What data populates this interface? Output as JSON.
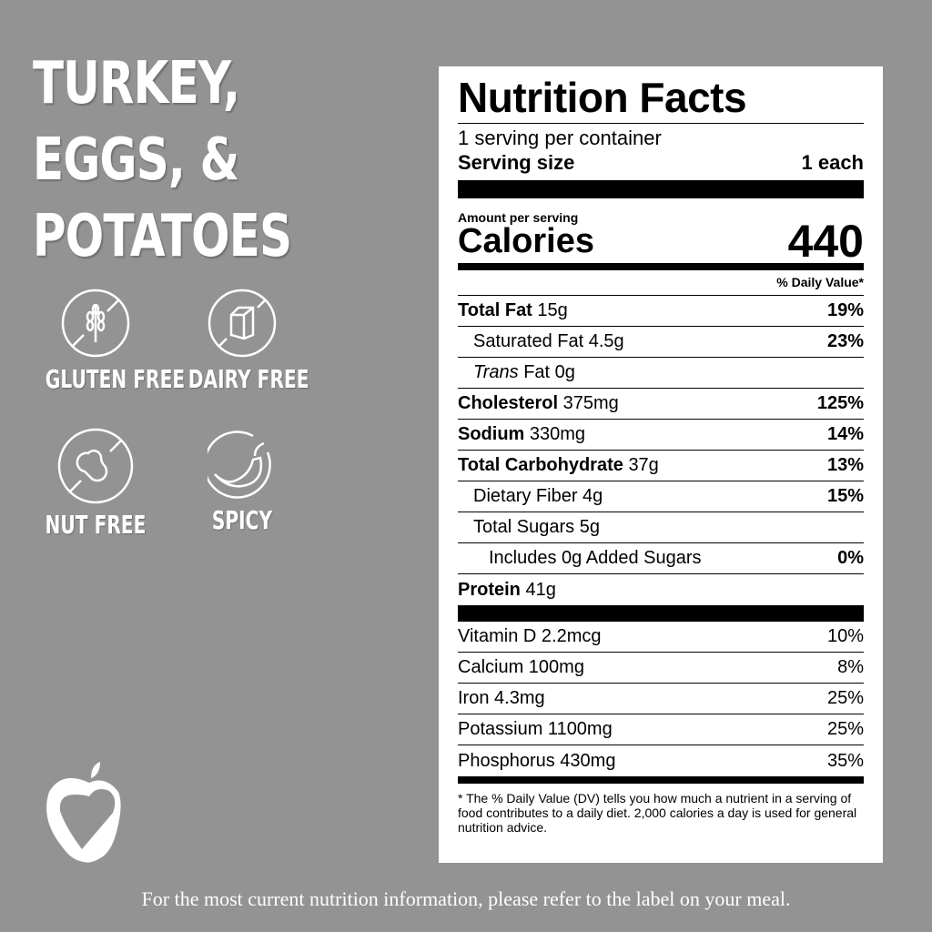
{
  "product": {
    "title_lines": [
      "TURKEY,",
      "EGGS, &",
      "POTATOES"
    ]
  },
  "badges": [
    {
      "icon": "gluten-free-icon",
      "label": "GLUTEN FREE"
    },
    {
      "icon": "dairy-free-icon",
      "label": "DAIRY FREE"
    },
    {
      "icon": "nut-free-icon",
      "label": "NUT FREE"
    },
    {
      "icon": "spicy-icon",
      "label": "SPICY"
    }
  ],
  "label": {
    "title": "Nutrition Facts",
    "servings": "1 serving per container",
    "serving_size_label": "Serving size",
    "serving_size_value": "1 each",
    "amount_per_serving": "Amount per serving",
    "calories_label": "Calories",
    "calories_value": "440",
    "dv_header": "% Daily Value*",
    "nutrients": [
      {
        "name": "Total Fat",
        "amount": "15g",
        "dv": "19%"
      },
      {
        "name": "Saturated Fat",
        "amount": "4.5g",
        "dv": "23%"
      },
      {
        "name": "Trans",
        "name2": "Fat",
        "amount": "0g",
        "dv": ""
      },
      {
        "name": "Cholesterol",
        "amount": "375mg",
        "dv": "125%"
      },
      {
        "name": "Sodium",
        "amount": "330mg",
        "dv": "14%"
      },
      {
        "name": "Total Carbohydrate",
        "amount": "37g",
        "dv": "13%"
      },
      {
        "name": "Dietary Fiber",
        "amount": "4g",
        "dv": "15%"
      },
      {
        "name": "Total Sugars",
        "amount": "5g",
        "dv": ""
      },
      {
        "name": "Includes 0g Added Sugars",
        "amount": "",
        "dv": "0%"
      },
      {
        "name": "Protein",
        "amount": "41g",
        "dv": ""
      }
    ],
    "vitamins": [
      {
        "name": "Vitamin D 2.2mcg",
        "dv": "10%"
      },
      {
        "name": "Calcium 100mg",
        "dv": "8%"
      },
      {
        "name": "Iron 4.3mg",
        "dv": "25%"
      },
      {
        "name": "Potassium 1100mg",
        "dv": "25%"
      },
      {
        "name": "Phosphorus 430mg",
        "dv": "35%"
      }
    ],
    "footnote": "* The % Daily Value (DV) tells you how much a nutrient in a serving of food contributes to a daily diet. 2,000 calories a day is used for general nutrition advice."
  },
  "footer": "For the most current nutrition information, please refer to the label on your meal."
}
